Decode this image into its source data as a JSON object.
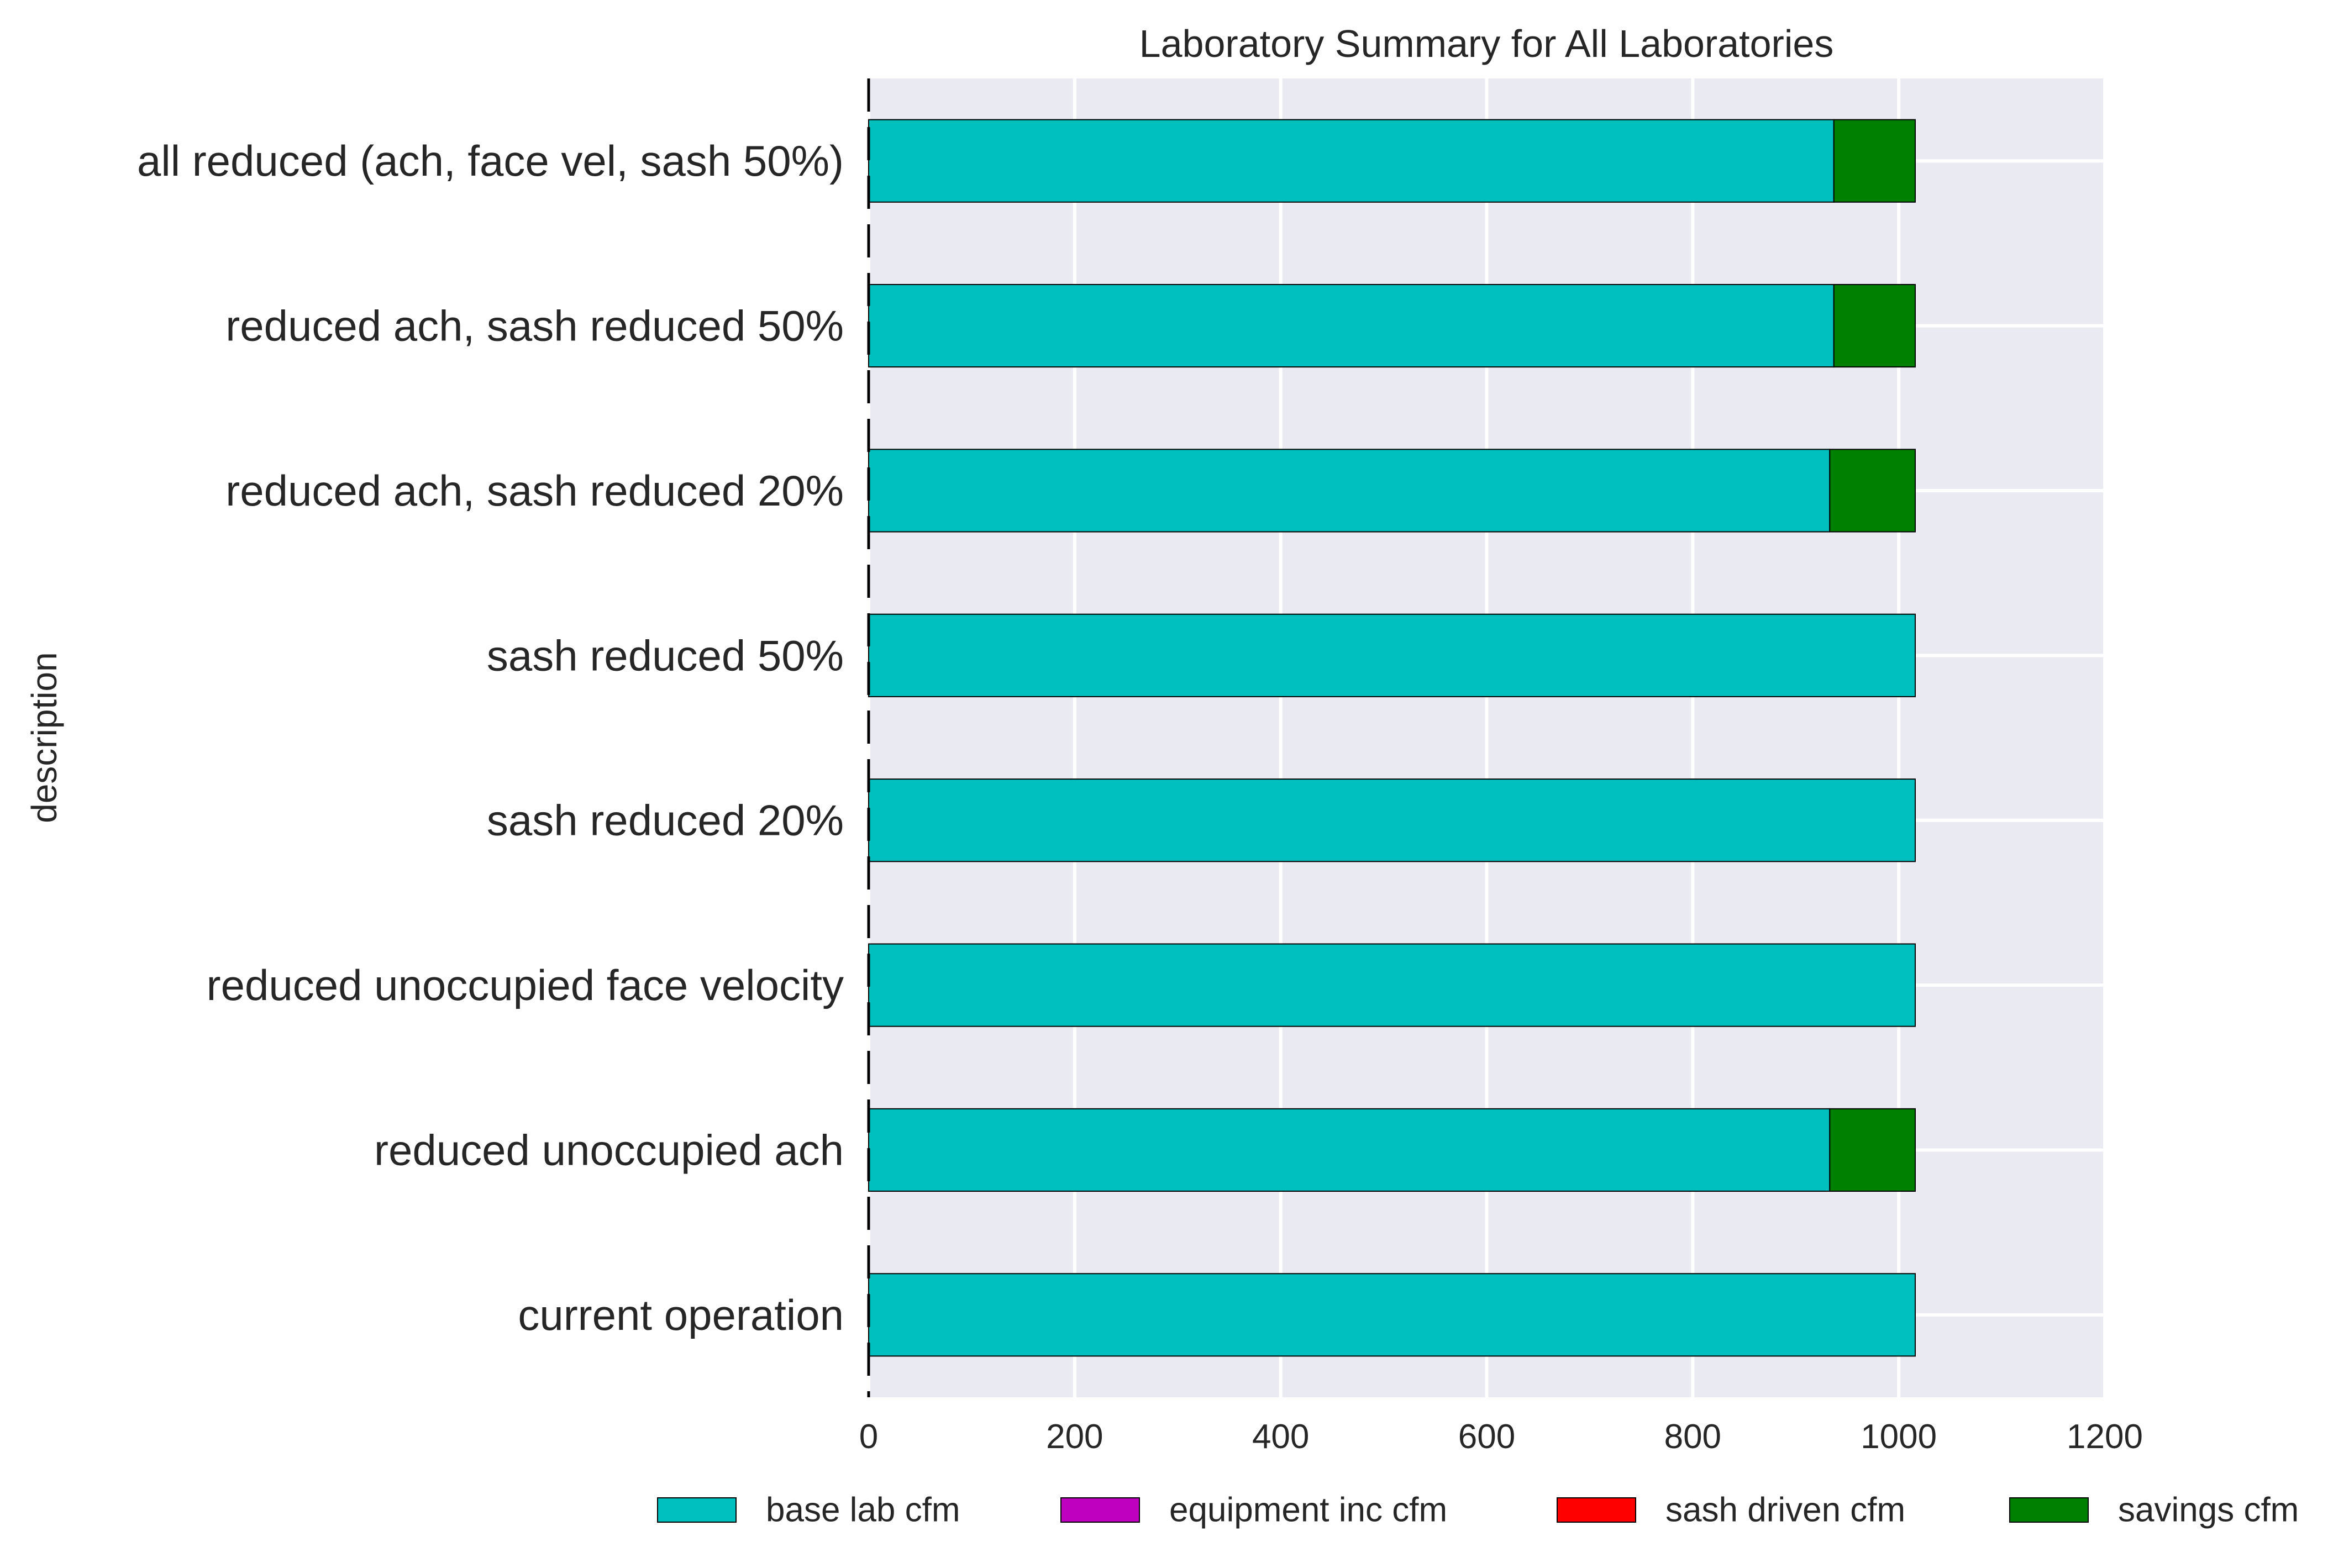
{
  "chart_data": {
    "type": "bar",
    "orientation": "horizontal",
    "stacked": true,
    "title": "Laboratory Summary for All Laboratories",
    "xlabel": "",
    "ylabel": "description",
    "xlim": [
      0,
      1200
    ],
    "x_ticks": [
      0,
      200,
      400,
      600,
      800,
      1000,
      1200
    ],
    "x_tick_labels": [
      "0",
      "200",
      "400",
      "600",
      "800",
      "1000",
      "1200"
    ],
    "grid": true,
    "legend_position": "bottom",
    "categories": [
      "current operation",
      "reduced unoccupied ach",
      "reduced unoccupied face velocity",
      "sash reduced 20%",
      "sash reduced 50%",
      "reduced ach, sash reduced 20%",
      "reduced ach, sash reduced 50%",
      "all reduced (ach, face vel, sash 50%)"
    ],
    "series": [
      {
        "name": "base lab cfm",
        "color": "#00bfbf",
        "values": [
          1016,
          933,
          1016,
          1016,
          1016,
          933,
          937,
          937
        ]
      },
      {
        "name": "equipment inc cfm",
        "color": "#bf00bf",
        "values": [
          0,
          0,
          0,
          0,
          0,
          0,
          0,
          0
        ]
      },
      {
        "name": "sash driven cfm",
        "color": "#ff0000",
        "values": [
          0,
          0,
          0,
          0,
          0,
          0,
          0,
          0
        ]
      },
      {
        "name": "savings cfm",
        "color": "#008000",
        "values": [
          0,
          83,
          0,
          0,
          0,
          83,
          79,
          79
        ]
      }
    ],
    "reference_line": {
      "x": 0,
      "style": "dashed",
      "color": "#000000"
    },
    "background_color": "#eaeaf2"
  }
}
